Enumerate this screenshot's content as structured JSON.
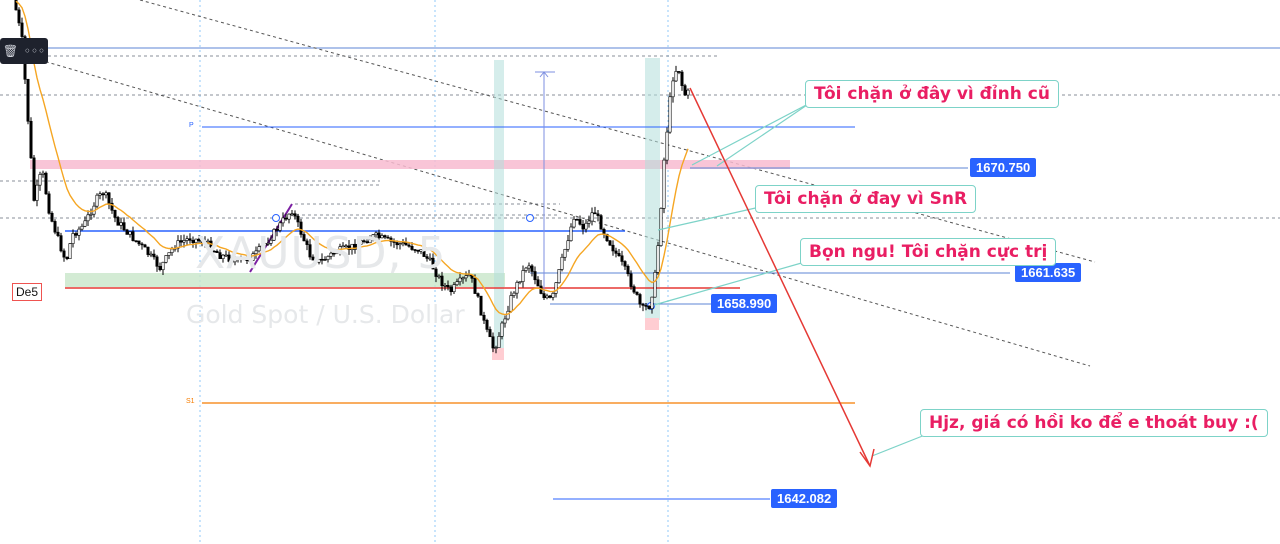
{
  "watermark": {
    "symbol": "XAUUSD, 5",
    "description": "Gold Spot / U.S. Dollar"
  },
  "toolbar": {
    "trash_icon": "🗑",
    "more_icon": "◦◦◦"
  },
  "labels": {
    "day": "De5",
    "pivot": "P",
    "support": "S1"
  },
  "price_tags": {
    "t1": "1670.750",
    "t2": "1661.635",
    "t3": "1658.990",
    "t4": "1642.082"
  },
  "callouts": {
    "c1": "Tôi chặn ở đây vì đỉnh cũ",
    "c2": "Tôi chặn ở đay vì SnR",
    "c3": "Bọn ngu! Tôi chặn cực trị",
    "c4": "Hjz, giá có hồi ko để e thoát buy :("
  },
  "colors": {
    "bull_candle": "#ffffff",
    "bear_candle": "#000000",
    "ma_line": "#f5a623",
    "pivot_line": "#2962ff",
    "support_line": "#f57c00",
    "resistance_zone": "#f8bbd0",
    "demand_zone": "#c8e6c9",
    "arrow": "#e53935",
    "callout_text": "#e91e63",
    "price_tag_bg": "#2962ff"
  }
}
